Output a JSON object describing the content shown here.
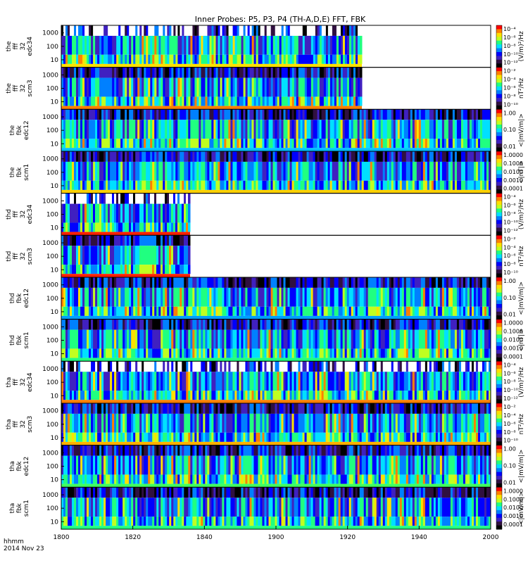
{
  "title": "Inner Probes: P5, P3, P4 (TH-A,D,E) FFT, FBK",
  "footer": {
    "line1": "hhmm",
    "line2": "2014 Nov 23"
  },
  "chart_data": {
    "type": "heatmap",
    "x_axis": {
      "ticks": [
        "1800",
        "1820",
        "1840",
        "1900",
        "1920",
        "1940",
        "2000"
      ],
      "range": [
        "1800",
        "2000"
      ]
    },
    "y_ticks": [
      "1000",
      "100",
      "10"
    ],
    "panels": [
      {
        "label": [
          "the",
          "fff",
          "32",
          "edc34"
        ],
        "data_end": 0.7,
        "top_color": "#ffffff",
        "bottom_band": "#ffe000",
        "cb_labels": [
          "10⁻⁴",
          "10⁻⁶",
          "10⁻⁸",
          "10⁻¹⁰",
          "10⁻¹²"
        ],
        "unit": "(V/m)²/Hz"
      },
      {
        "label": [
          "the",
          "fff",
          "32",
          "scm3"
        ],
        "data_end": 0.7,
        "top_color": "#301040",
        "bottom_band": "#ff8000",
        "cb_labels": [
          "10⁻²",
          "10⁻⁴",
          "10⁻⁶",
          "10⁻⁸",
          "10⁻¹⁰"
        ],
        "unit": "nT²/Hz"
      },
      {
        "label": [
          "the",
          "fbk",
          "edc12"
        ],
        "data_end": 1.0,
        "top_color": "#ff4000",
        "bottom_band": "#00c0ff",
        "cb_labels": [
          "1.00",
          "0.10",
          "0.01"
        ],
        "unit": "<|mV/m|>"
      },
      {
        "label": [
          "the",
          "fbk",
          "scm1"
        ],
        "data_end": 1.0,
        "top_color": "#20ff80",
        "bottom_band": "#ffd000",
        "cb_labels": [
          "1.0000",
          "0.1000",
          "0.0100",
          "0.0010",
          "0.0001"
        ],
        "unit": "<|nT|>"
      },
      {
        "label": [
          "thd",
          "fff",
          "32",
          "edc34"
        ],
        "data_end": 0.3,
        "top_color": "#ffffff",
        "bottom_band": "#ff2000",
        "cb_labels": [
          "10⁻⁴",
          "10⁻⁶",
          "10⁻⁸",
          "10⁻¹⁰",
          "10⁻¹²"
        ],
        "unit": "(V/m)²/Hz"
      },
      {
        "label": [
          "thd",
          "fff",
          "32",
          "scm3"
        ],
        "data_end": 0.3,
        "top_color": "#301040",
        "bottom_band": "#ff2000",
        "cb_labels": [
          "10⁻²",
          "10⁻⁴",
          "10⁻⁶",
          "10⁻⁸",
          "10⁻¹⁰"
        ],
        "unit": "nT²/Hz"
      },
      {
        "label": [
          "thd",
          "fbk",
          "edc12"
        ],
        "data_end": 1.0,
        "top_color": "#ff8000",
        "bottom_band": "#00a0ff",
        "cb_labels": [
          "1.00",
          "0.10",
          "0.01"
        ],
        "unit": "<|mV/m|>"
      },
      {
        "label": [
          "thd",
          "fbk",
          "scm1"
        ],
        "data_end": 1.0,
        "top_color": "#20c0ff",
        "bottom_band": "#20ff80",
        "cb_labels": [
          "1.0000",
          "0.1000",
          "0.0100",
          "0.0010",
          "0.0001"
        ],
        "unit": "<|nT|>"
      },
      {
        "label": [
          "tha",
          "fff",
          "32",
          "edc34"
        ],
        "data_end": 1.0,
        "top_color": "#ffffff",
        "bottom_band": "#ff8000",
        "cb_labels": [
          "10⁻⁴",
          "10⁻⁶",
          "10⁻⁸",
          "10⁻¹⁰",
          "10⁻¹²"
        ],
        "unit": "(V/m)²/Hz"
      },
      {
        "label": [
          "tha",
          "fff",
          "32",
          "scm3"
        ],
        "data_end": 1.0,
        "top_color": "#301040",
        "bottom_band": "#ffb000",
        "cb_labels": [
          "10⁻²",
          "10⁻⁴",
          "10⁻⁶",
          "10⁻⁸",
          "10⁻¹⁰"
        ],
        "unit": "nT²/Hz"
      },
      {
        "label": [
          "tha",
          "fbk",
          "edc12"
        ],
        "data_end": 1.0,
        "top_color": "#20c0ff",
        "bottom_band": "#40ff60",
        "cb_labels": [
          "1.00",
          "0.10",
          "0.01"
        ],
        "unit": "<|mV/m|>"
      },
      {
        "label": [
          "tha",
          "fbk",
          "scm1"
        ],
        "data_end": 1.0,
        "top_color": "#20c0ff",
        "bottom_band": "#20ff80",
        "cb_labels": [
          "1.0000",
          "0.1000",
          "0.0100",
          "0.0010",
          "0.0001"
        ],
        "unit": "<|mV/m|>"
      }
    ],
    "colormap": [
      "#000000",
      "#301040",
      "#4020c0",
      "#0000ff",
      "#0080ff",
      "#00e0ff",
      "#20ff80",
      "#c0ff20",
      "#ffe000",
      "#ff8000",
      "#ff0000"
    ]
  }
}
